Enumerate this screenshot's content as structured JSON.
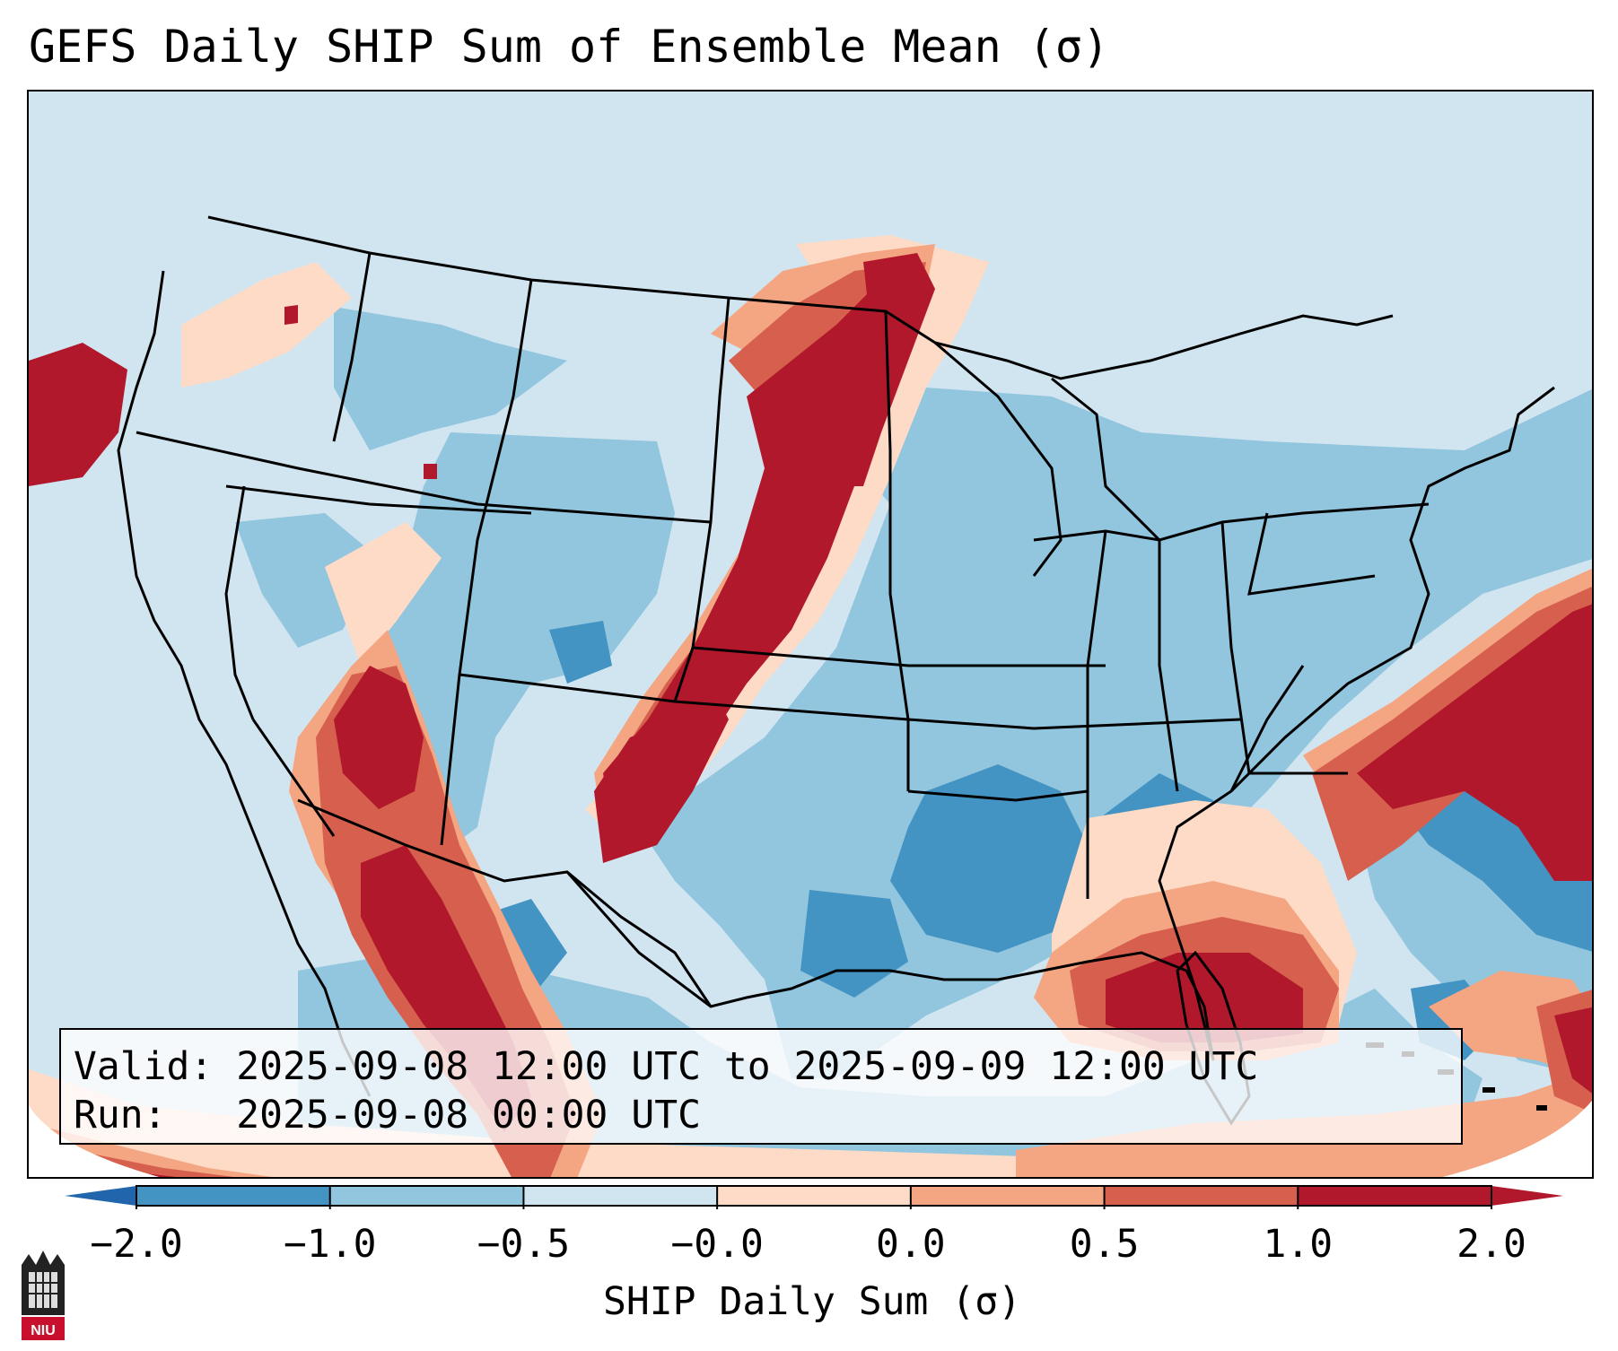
{
  "title": "GEFS Daily SHIP Sum of Ensemble Mean (σ)",
  "info": {
    "valid_line": "Valid: 2025-09-08 12:00 UTC to 2025-09-09 12:00 UTC",
    "run_line": "Run:   2025-09-08 00:00 UTC"
  },
  "colorbar": {
    "label": "SHIP Daily Sum (σ)",
    "ticks": [
      "−2.0",
      "−1.0",
      "−0.5",
      "−0.0",
      "0.0",
      "0.5",
      "1.0",
      "2.0"
    ],
    "colors": [
      "#4393c3",
      "#92c5de",
      "#d1e5f0",
      "#fddbc7",
      "#f4a582",
      "#d6604d",
      "#b2182b"
    ],
    "extend_low_color": "#2166ac",
    "extend_high_color": "#b2182b"
  },
  "logo": {
    "text": "NIU",
    "icon": "niu-building-icon"
  }
}
